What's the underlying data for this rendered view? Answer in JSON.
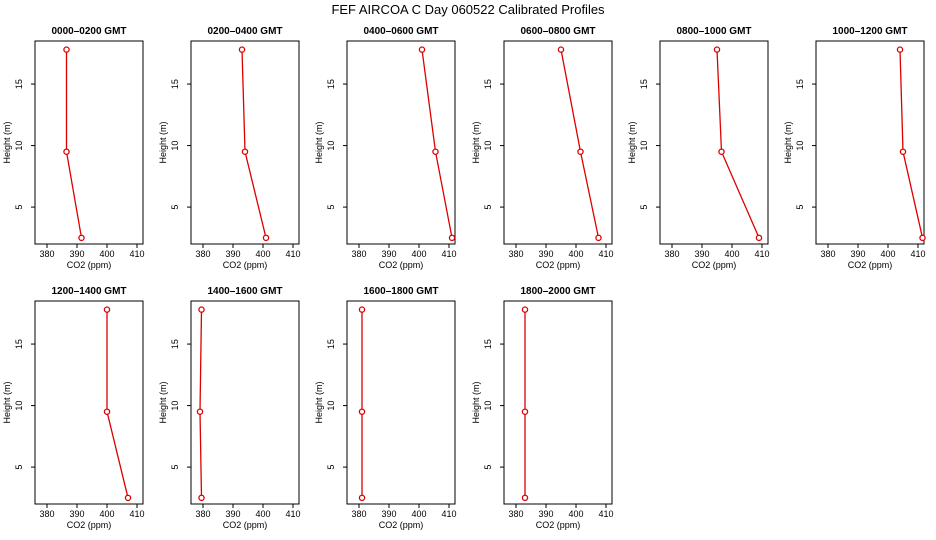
{
  "chart_data": {
    "type": "line",
    "title": "FEF AIRCOA C  Day 060522  Calibrated Profiles",
    "xlabel": "CO2 (ppm)",
    "ylabel": "Height (m)",
    "xlim": [
      376,
      412
    ],
    "ylim": [
      2,
      18.5
    ],
    "x_ticks": [
      380,
      390,
      400,
      410
    ],
    "y_ticks": [
      5,
      10,
      15
    ],
    "grid": false,
    "line_color": "#dd0000",
    "marker": "open-circle",
    "heights": [
      17.8,
      9.5,
      2.5
    ],
    "panels": [
      {
        "title": "0000–0200 GMT",
        "co2": [
          386.5,
          386.5,
          391.5
        ]
      },
      {
        "title": "0200–0400 GMT",
        "co2": [
          393.0,
          394.0,
          401.0
        ]
      },
      {
        "title": "0400–0600 GMT",
        "co2": [
          401.0,
          405.5,
          411.0
        ]
      },
      {
        "title": "0600–0800 GMT",
        "co2": [
          395.0,
          401.5,
          407.5
        ]
      },
      {
        "title": "0800–1000 GMT",
        "co2": [
          395.0,
          396.5,
          409.0
        ]
      },
      {
        "title": "1000–1200 GMT",
        "co2": [
          404.0,
          405.0,
          411.5
        ]
      },
      {
        "title": "1200–1400 GMT",
        "co2": [
          400.0,
          400.0,
          407.0
        ]
      },
      {
        "title": "1400–1600 GMT",
        "co2": [
          379.5,
          379.0,
          379.5
        ]
      },
      {
        "title": "1600–1800 GMT",
        "co2": [
          381.0,
          381.0,
          381.0
        ]
      },
      {
        "title": "1800–2000 GMT",
        "co2": [
          383.0,
          383.0,
          383.0
        ]
      }
    ]
  }
}
